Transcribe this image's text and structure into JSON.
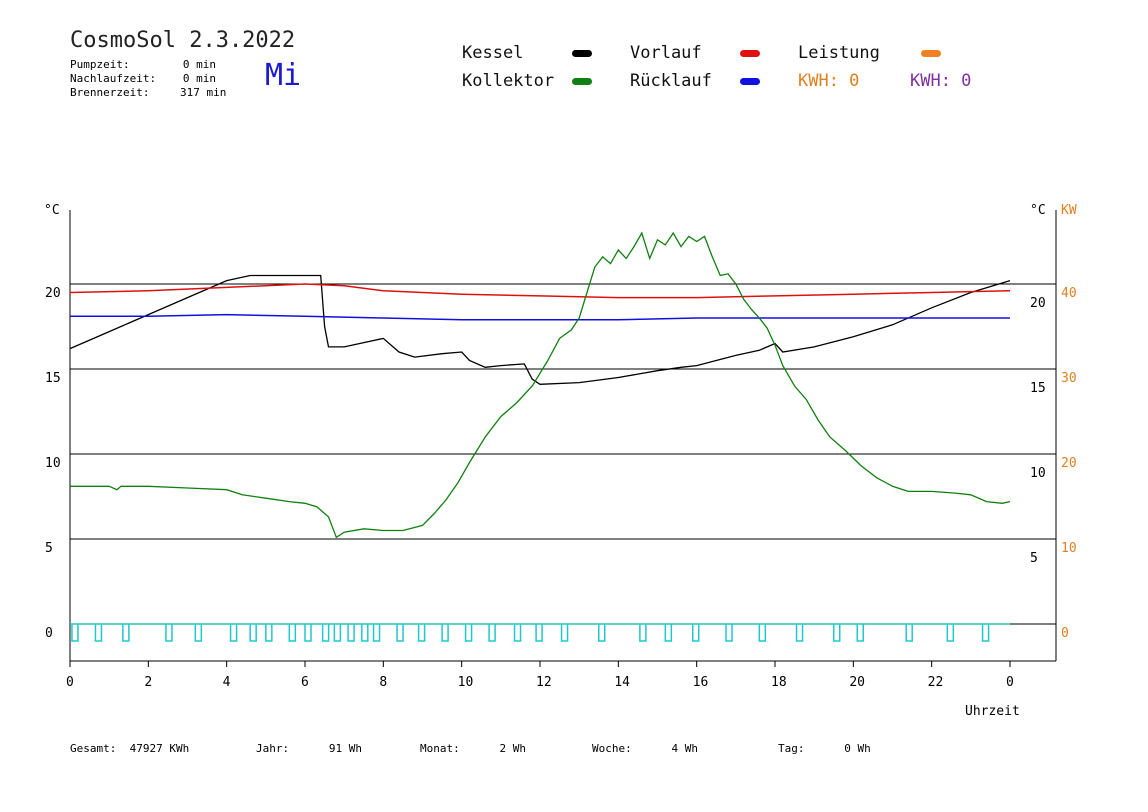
{
  "header": {
    "title": "CosmoSol 2.3.2022",
    "day": "Mi",
    "info": [
      {
        "label": "Pumpzeit:",
        "value": "0 min"
      },
      {
        "label": "Nachlaufzeit:",
        "value": "0 min"
      },
      {
        "label": "Brennerzeit:",
        "value": "317 min"
      }
    ]
  },
  "legend": [
    {
      "label": "Kessel",
      "color": "#000000"
    },
    {
      "label": "Vorlauf",
      "color": "#e01010"
    },
    {
      "label": "Leistung",
      "color": "#f08020"
    },
    {
      "label": "Kollektor",
      "color": "#108010"
    },
    {
      "label": "Rücklauf",
      "color": "#1010e0"
    }
  ],
  "kwh": [
    {
      "text": "KWH: 0",
      "color": "#e08020"
    },
    {
      "text": "KWH: 0",
      "color": "#8030a0"
    }
  ],
  "footer": [
    {
      "label": "Gesamt:",
      "value": "47927 KWh"
    },
    {
      "label": "Jahr:",
      "value": "91 Wh"
    },
    {
      "label": "Monat:",
      "value": "2 Wh"
    },
    {
      "label": "Woche:",
      "value": "4 Wh"
    },
    {
      "label": "Tag:",
      "value": "0 Wh"
    }
  ],
  "chart_data": {
    "type": "line",
    "xlabel": "Uhrzeit",
    "x_ticks": [
      "0",
      "2",
      "4",
      "6",
      "8",
      "10",
      "12",
      "14",
      "16",
      "18",
      "20",
      "22",
      "0"
    ],
    "xlim": [
      0,
      24
    ],
    "left_axis": {
      "unit": "°C",
      "ticks": [
        "0",
        "5",
        "10",
        "15",
        "20"
      ],
      "ylim": [
        -1.5,
        25
      ]
    },
    "right_axis": {
      "unit": "°C",
      "ticks": [
        "5",
        "10",
        "15",
        "20"
      ]
    },
    "power_axis": {
      "unit": "KW",
      "ticks": [
        "0",
        "10",
        "20",
        "30",
        "40"
      ],
      "color": "#e08020"
    },
    "grid_y": [
      5,
      10,
      15,
      20
    ],
    "series": [
      {
        "name": "Kessel",
        "color": "#000000",
        "points": [
          [
            0,
            16.2
          ],
          [
            1,
            17.2
          ],
          [
            2,
            18.2
          ],
          [
            3,
            19.2
          ],
          [
            4,
            20.2
          ],
          [
            4.6,
            20.5
          ],
          [
            6.4,
            20.5
          ],
          [
            6.5,
            17.5
          ],
          [
            6.6,
            16.3
          ],
          [
            7,
            16.3
          ],
          [
            8,
            16.8
          ],
          [
            8.4,
            16
          ],
          [
            8.8,
            15.7
          ],
          [
            9.5,
            15.9
          ],
          [
            10,
            16
          ],
          [
            10.2,
            15.5
          ],
          [
            10.6,
            15.1
          ],
          [
            11,
            15.2
          ],
          [
            11.6,
            15.3
          ],
          [
            11.8,
            14.4
          ],
          [
            12,
            14.1
          ],
          [
            13,
            14.2
          ],
          [
            14,
            14.5
          ],
          [
            15,
            14.9
          ],
          [
            15.6,
            15.1
          ],
          [
            16,
            15.2
          ],
          [
            17,
            15.8
          ],
          [
            17.6,
            16.1
          ],
          [
            18,
            16.5
          ],
          [
            18.2,
            16
          ],
          [
            19,
            16.3
          ],
          [
            20,
            16.9
          ],
          [
            21,
            17.6
          ],
          [
            22,
            18.6
          ],
          [
            23,
            19.5
          ],
          [
            24,
            20.2
          ]
        ]
      },
      {
        "name": "Vorlauf",
        "color": "#e01010",
        "points": [
          [
            0,
            19.5
          ],
          [
            2,
            19.6
          ],
          [
            4,
            19.8
          ],
          [
            6,
            20
          ],
          [
            7,
            19.9
          ],
          [
            8,
            19.6
          ],
          [
            10,
            19.4
          ],
          [
            12,
            19.3
          ],
          [
            14,
            19.2
          ],
          [
            16,
            19.2
          ],
          [
            18,
            19.3
          ],
          [
            20,
            19.4
          ],
          [
            22,
            19.5
          ],
          [
            24,
            19.6
          ]
        ]
      },
      {
        "name": "Rücklauf",
        "color": "#1010e0",
        "points": [
          [
            0,
            18.1
          ],
          [
            2,
            18.1
          ],
          [
            4,
            18.2
          ],
          [
            6,
            18.1
          ],
          [
            8,
            18
          ],
          [
            10,
            17.9
          ],
          [
            12,
            17.9
          ],
          [
            14,
            17.9
          ],
          [
            16,
            18
          ],
          [
            18,
            18
          ],
          [
            20,
            18
          ],
          [
            22,
            18
          ],
          [
            24,
            18
          ]
        ]
      },
      {
        "name": "Kollektor",
        "color": "#108010",
        "points": [
          [
            0,
            8.1
          ],
          [
            1,
            8.1
          ],
          [
            1.2,
            7.9
          ],
          [
            1.3,
            8.1
          ],
          [
            2,
            8.1
          ],
          [
            3,
            8
          ],
          [
            4,
            7.9
          ],
          [
            4.4,
            7.6
          ],
          [
            5,
            7.4
          ],
          [
            5.6,
            7.2
          ],
          [
            6,
            7.1
          ],
          [
            6.3,
            6.9
          ],
          [
            6.6,
            6.3
          ],
          [
            6.8,
            5.1
          ],
          [
            7,
            5.4
          ],
          [
            7.5,
            5.6
          ],
          [
            8,
            5.5
          ],
          [
            8.5,
            5.5
          ],
          [
            9,
            5.8
          ],
          [
            9.3,
            6.5
          ],
          [
            9.6,
            7.3
          ],
          [
            9.9,
            8.3
          ],
          [
            10.2,
            9.5
          ],
          [
            10.6,
            11
          ],
          [
            11,
            12.2
          ],
          [
            11.4,
            13
          ],
          [
            11.8,
            14
          ],
          [
            12.2,
            15.5
          ],
          [
            12.5,
            16.8
          ],
          [
            12.8,
            17.3
          ],
          [
            13,
            18
          ],
          [
            13.2,
            19.5
          ],
          [
            13.4,
            21
          ],
          [
            13.6,
            21.6
          ],
          [
            13.8,
            21.2
          ],
          [
            14,
            22
          ],
          [
            14.2,
            21.5
          ],
          [
            14.4,
            22.2
          ],
          [
            14.6,
            23
          ],
          [
            14.8,
            21.5
          ],
          [
            15,
            22.6
          ],
          [
            15.2,
            22.3
          ],
          [
            15.4,
            23
          ],
          [
            15.6,
            22.2
          ],
          [
            15.8,
            22.8
          ],
          [
            16,
            22.5
          ],
          [
            16.2,
            22.8
          ],
          [
            16.4,
            21.6
          ],
          [
            16.6,
            20.5
          ],
          [
            16.8,
            20.6
          ],
          [
            17,
            20
          ],
          [
            17.2,
            19.1
          ],
          [
            17.4,
            18.5
          ],
          [
            17.6,
            18
          ],
          [
            17.8,
            17.4
          ],
          [
            18,
            16.4
          ],
          [
            18.2,
            15.2
          ],
          [
            18.5,
            14
          ],
          [
            18.8,
            13.2
          ],
          [
            19.1,
            12
          ],
          [
            19.4,
            11
          ],
          [
            19.8,
            10.2
          ],
          [
            20.2,
            9.3
          ],
          [
            20.6,
            8.6
          ],
          [
            21,
            8.1
          ],
          [
            21.4,
            7.8
          ],
          [
            22,
            7.8
          ],
          [
            22.6,
            7.7
          ],
          [
            23,
            7.6
          ],
          [
            23.4,
            7.2
          ],
          [
            23.8,
            7.1
          ],
          [
            24,
            7.2
          ]
        ]
      }
    ],
    "pulse_line": {
      "color": "#20c8c8",
      "level": 0
    },
    "power_line": {
      "color": "#000000",
      "level": 0
    }
  }
}
